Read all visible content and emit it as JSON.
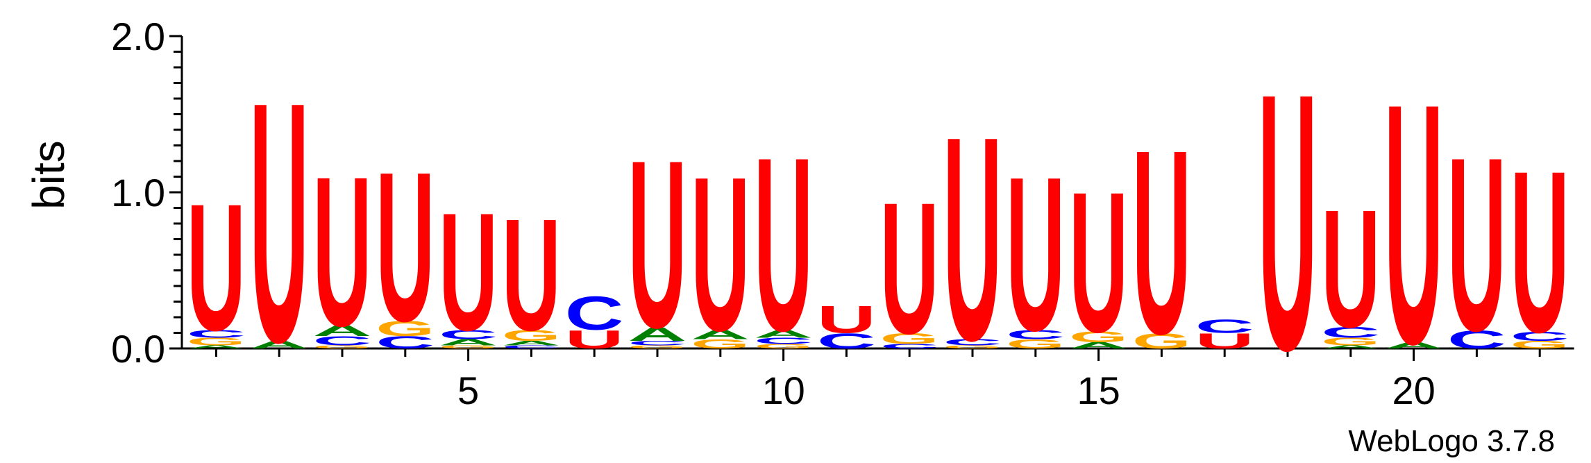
{
  "chart_data": {
    "type": "sequence-logo",
    "ylabel": "bits",
    "ylim": [
      0,
      2
    ],
    "y_ticks": [
      "0.0",
      "1.0",
      "2.0"
    ],
    "x_tick_labels": [
      "5",
      "10",
      "15",
      "20"
    ],
    "x_ticks": [
      5,
      10,
      15,
      20
    ],
    "x_range": [
      1,
      22
    ],
    "footer": "WebLogo 3.7.8",
    "colors": {
      "A": "#008000",
      "C": "#0000ff",
      "G": "#ffa500",
      "U": "#ff0000"
    },
    "positions": [
      {
        "pos": 1,
        "stack": [
          [
            "A",
            0.02
          ],
          [
            "G",
            0.05
          ],
          [
            "C",
            0.05
          ],
          [
            "U",
            0.84
          ]
        ]
      },
      {
        "pos": 2,
        "stack": [
          [
            "A",
            0.05
          ],
          [
            "U",
            1.59
          ]
        ]
      },
      {
        "pos": 3,
        "stack": [
          [
            "G",
            0.02
          ],
          [
            "C",
            0.06
          ],
          [
            "A",
            0.07
          ],
          [
            "U",
            0.99
          ]
        ]
      },
      {
        "pos": 4,
        "stack": [
          [
            "C",
            0.08
          ],
          [
            "G",
            0.1
          ],
          [
            "U",
            0.99
          ]
        ]
      },
      {
        "pos": 5,
        "stack": [
          [
            "G",
            0.02
          ],
          [
            "A",
            0.04
          ],
          [
            "C",
            0.06
          ],
          [
            "U",
            0.78
          ]
        ]
      },
      {
        "pos": 6,
        "stack": [
          [
            "C",
            0.02
          ],
          [
            "A",
            0.03
          ],
          [
            "G",
            0.07
          ],
          [
            "U",
            0.74
          ]
        ]
      },
      {
        "pos": 7,
        "stack": [
          [
            "U",
            0.12
          ],
          [
            "C",
            0.22
          ]
        ]
      },
      {
        "pos": 8,
        "stack": [
          [
            "G",
            0.02
          ],
          [
            "C",
            0.03
          ],
          [
            "A",
            0.09
          ],
          [
            "U",
            1.11
          ]
        ]
      },
      {
        "pos": 9,
        "stack": [
          [
            "G",
            0.06
          ],
          [
            "A",
            0.06
          ],
          [
            "U",
            1.02
          ]
        ]
      },
      {
        "pos": 10,
        "stack": [
          [
            "G",
            0.03
          ],
          [
            "C",
            0.04
          ],
          [
            "A",
            0.05
          ],
          [
            "U",
            1.15
          ]
        ]
      },
      {
        "pos": 11,
        "stack": [
          [
            "C",
            0.1
          ],
          [
            "U",
            0.18
          ]
        ]
      },
      {
        "pos": 12,
        "stack": [
          [
            "C",
            0.03
          ],
          [
            "G",
            0.07
          ],
          [
            "U",
            0.87
          ]
        ]
      },
      {
        "pos": 13,
        "stack": [
          [
            "G",
            0.02
          ],
          [
            "C",
            0.04
          ],
          [
            "U",
            1.35
          ]
        ]
      },
      {
        "pos": 14,
        "stack": [
          [
            "G",
            0.06
          ],
          [
            "C",
            0.06
          ],
          [
            "U",
            1.02
          ]
        ]
      },
      {
        "pos": 15,
        "stack": [
          [
            "A",
            0.04
          ],
          [
            "G",
            0.07
          ],
          [
            "U",
            0.93
          ]
        ]
      },
      {
        "pos": 16,
        "stack": [
          [
            "G",
            0.1
          ],
          [
            "U",
            1.22
          ]
        ]
      },
      {
        "pos": 17,
        "stack": [
          [
            "U",
            0.1
          ],
          [
            "C",
            0.09
          ]
        ]
      },
      {
        "pos": 18,
        "stack": [
          [
            "U",
            1.7
          ]
        ]
      },
      {
        "pos": 19,
        "stack": [
          [
            "A",
            0.02
          ],
          [
            "G",
            0.05
          ],
          [
            "C",
            0.07
          ],
          [
            "U",
            0.78
          ]
        ]
      },
      {
        "pos": 20,
        "stack": [
          [
            "A",
            0.04
          ],
          [
            "U",
            1.59
          ]
        ]
      },
      {
        "pos": 21,
        "stack": [
          [
            "C",
            0.12
          ],
          [
            "U",
            1.15
          ]
        ]
      },
      {
        "pos": 22,
        "stack": [
          [
            "G",
            0.05
          ],
          [
            "C",
            0.06
          ],
          [
            "U",
            1.07
          ]
        ]
      }
    ]
  }
}
